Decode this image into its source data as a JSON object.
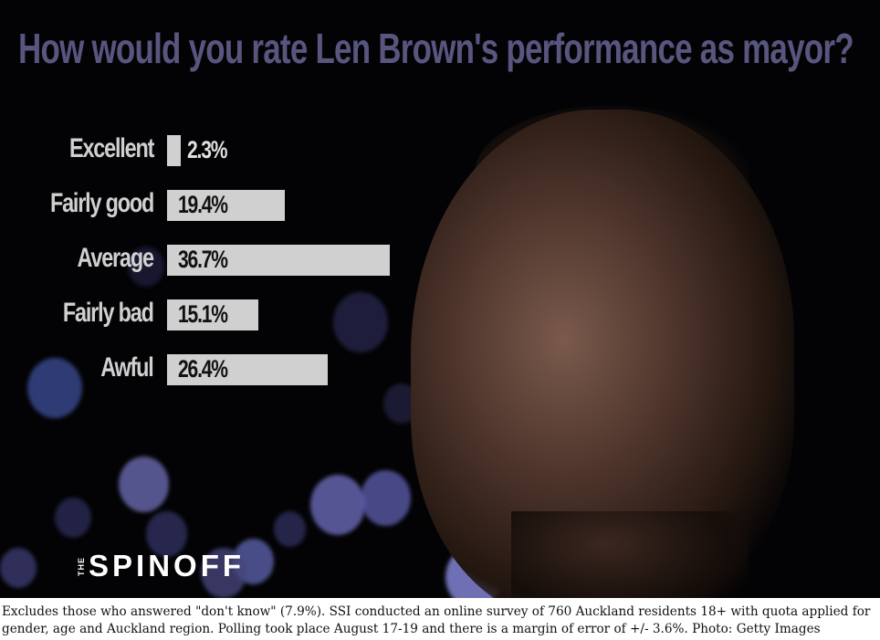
{
  "chart_data": {
    "type": "bar",
    "orientation": "horizontal",
    "title": "How would you rate Len Brown's performance as mayor?",
    "categories": [
      "Excellent",
      "Fairly good",
      "Average",
      "Fairly bad",
      "Awful"
    ],
    "values": [
      2.3,
      19.4,
      36.7,
      15.1,
      26.4
    ],
    "value_labels": [
      "2.3%",
      "19.4%",
      "36.7%",
      "15.1%",
      "26.4%"
    ],
    "unit": "%",
    "grid": false,
    "colors": {
      "bar": "#d0d0d0",
      "title": "#58557f",
      "label": "#d0d0d0",
      "value_on_bar": "#111111",
      "value_outside": "#e0e0e0",
      "background": "#030305"
    }
  },
  "logo": {
    "small": "THE",
    "main": "SPINOFF"
  },
  "caption": "Excludes those who answered \"don't know\" (7.9%). SSI conducted an online survey of 760 Auckland residents 18+ with quota applied for gender, age and Auckland region. Polling took place August 17-19 and there is a margin of error of +/- 3.6%. Photo: Getty Images"
}
